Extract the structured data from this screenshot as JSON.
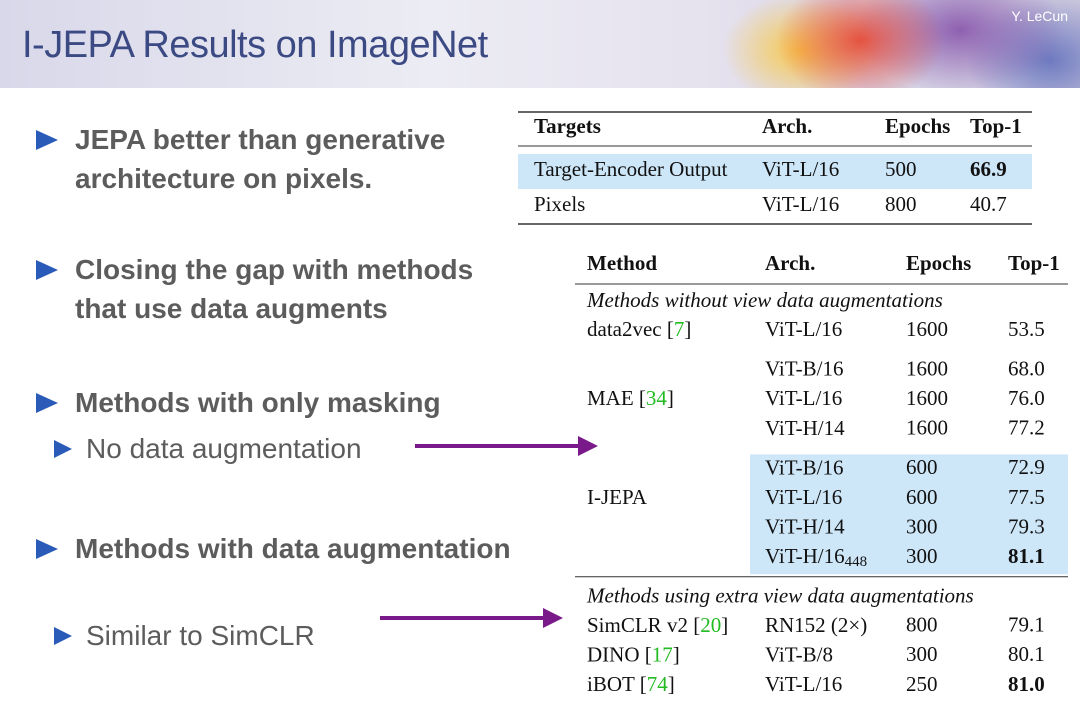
{
  "header": {
    "title": "I-JEPA Results on ImageNet",
    "author": "Y. LeCun"
  },
  "bullets": [
    {
      "text": "JEPA better than generative architecture on pixels.",
      "sub": []
    },
    {
      "text": "Closing the gap with methods that use data augments",
      "sub": []
    },
    {
      "text": "Methods with only masking",
      "sub": [
        "No data augmentation"
      ]
    },
    {
      "text": "Methods with data augmentation",
      "sub": [
        "Similar to SimCLR"
      ]
    }
  ],
  "table1": {
    "columns": [
      "Targets",
      "Arch.",
      "Epochs",
      "Top-1"
    ],
    "rows": [
      {
        "cells": [
          "Target-Encoder Output",
          "ViT-L/16",
          "500",
          "66.9"
        ],
        "highlight": true,
        "bold_last": true
      },
      {
        "cells": [
          "Pixels",
          "ViT-L/16",
          "800",
          "40.7"
        ],
        "highlight": false,
        "bold_last": false
      }
    ]
  },
  "table2": {
    "columns": [
      "Method",
      "Arch.",
      "Epochs",
      "Top-1"
    ],
    "groups": [
      {
        "caption": "Methods without view data augmentations",
        "rows": [
          {
            "method": [
              "data2vec [",
              "7",
              "]"
            ],
            "highlight": false,
            "entries": [
              {
                "arch": "ViT-L/16",
                "epochs": "1600",
                "top1": "53.5",
                "bold": false
              }
            ]
          },
          {
            "method": [
              "MAE [",
              "34",
              "]"
            ],
            "highlight": false,
            "entries": [
              {
                "arch": "ViT-B/16",
                "epochs": "1600",
                "top1": "68.0",
                "bold": false
              },
              {
                "arch": "ViT-L/16",
                "epochs": "1600",
                "top1": "76.0",
                "bold": false
              },
              {
                "arch": "ViT-H/14",
                "epochs": "1600",
                "top1": "77.2",
                "bold": false
              }
            ]
          },
          {
            "method": [
              "I-JEPA"
            ],
            "highlight": true,
            "entries": [
              {
                "arch": "ViT-B/16",
                "epochs": "600",
                "top1": "72.9",
                "bold": false
              },
              {
                "arch": "ViT-L/16",
                "epochs": "600",
                "top1": "77.5",
                "bold": false
              },
              {
                "arch": "ViT-H/14",
                "epochs": "300",
                "top1": "79.3",
                "bold": false
              },
              {
                "arch": "ViT-H/16",
                "arch_sub": "448",
                "epochs": "300",
                "top1": "81.1",
                "bold": true
              }
            ]
          }
        ]
      },
      {
        "caption": "Methods using extra view data augmentations",
        "rows": [
          {
            "method": [
              "SimCLR v2 [",
              "20",
              "]"
            ],
            "highlight": false,
            "entries": [
              {
                "arch": "RN152 (2×)",
                "epochs": "800",
                "top1": "79.1",
                "bold": false
              }
            ]
          },
          {
            "method": [
              "DINO [",
              "17",
              "]"
            ],
            "highlight": false,
            "entries": [
              {
                "arch": "ViT-B/8",
                "epochs": "300",
                "top1": "80.1",
                "bold": false
              }
            ]
          },
          {
            "method": [
              "iBOT [",
              "74",
              "]"
            ],
            "highlight": false,
            "entries": [
              {
                "arch": "ViT-L/16",
                "epochs": "250",
                "top1": "81.0",
                "bold": true
              }
            ]
          }
        ]
      }
    ]
  }
}
